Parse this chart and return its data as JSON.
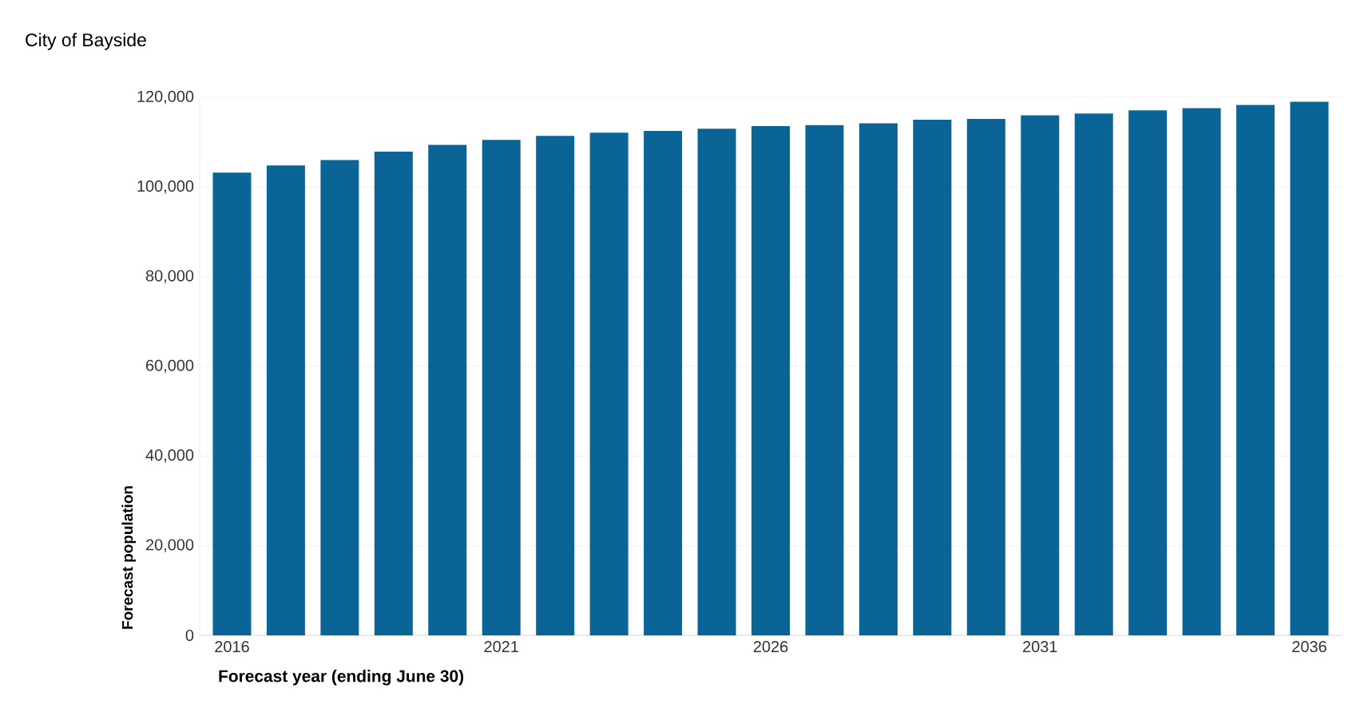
{
  "chart_data": {
    "type": "bar",
    "title": "City of Bayside",
    "xlabel": "Forecast year (ending June 30)",
    "ylabel": "Forecast population",
    "categories": [
      "2016",
      null,
      null,
      null,
      null,
      "2021",
      null,
      null,
      null,
      null,
      "2026",
      null,
      null,
      null,
      null,
      "2031",
      null,
      null,
      null,
      null,
      "2036"
    ],
    "values": [
      103200,
      104800,
      106000,
      107900,
      109400,
      110500,
      111400,
      112100,
      112500,
      113000,
      113600,
      113800,
      114200,
      115000,
      115200,
      116000,
      116400,
      117100,
      117600,
      118300,
      119000
    ],
    "color": "#0a6496",
    "ylim": [
      0,
      120000
    ],
    "yticks": [
      0,
      {
        "value": 20000,
        "label": "20,000"
      },
      {
        "value": 40000,
        "label": "40,000"
      },
      {
        "value": 60000,
        "label": "60,000"
      },
      {
        "value": 80000,
        "label": "80,000"
      },
      {
        "value": 100000,
        "label": "100,000"
      },
      {
        "value": 120000,
        "label": "120,000"
      }
    ],
    "grid": "y"
  }
}
